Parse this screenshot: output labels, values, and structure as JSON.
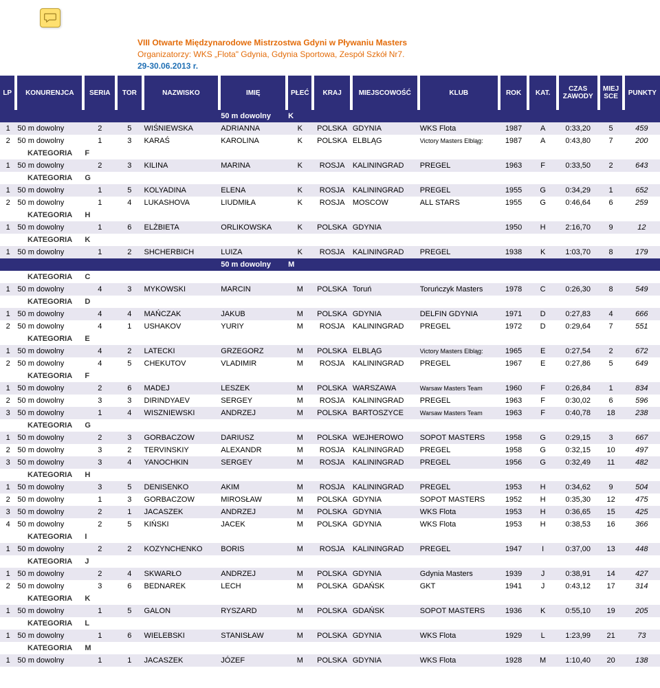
{
  "header": {
    "line1": "VIII Otwarte Międzynarodowe Mistrzostwa Gdyni w Pływaniu Masters",
    "line2": "Organizatorzy: WKS „Flota\" Gdynia, Gdynia Sportowa, Zespół Szkół Nr7.",
    "line3": "29-30.06.2013 r."
  },
  "columns": [
    {
      "key": "lp",
      "label": "LP",
      "cls": "col-lp"
    },
    {
      "key": "kon",
      "label": "KONURENJCA",
      "cls": "col-kon"
    },
    {
      "key": "ser",
      "label": "SERIA",
      "cls": "col-ser"
    },
    {
      "key": "tor",
      "label": "TOR",
      "cls": "col-tor"
    },
    {
      "key": "naz",
      "label": "NAZWISKO",
      "cls": "col-naz"
    },
    {
      "key": "imie",
      "label": "IMIĘ",
      "cls": "col-imie"
    },
    {
      "key": "plec",
      "label": "PŁEĆ",
      "cls": "col-plec"
    },
    {
      "key": "kraj",
      "label": "KRAJ",
      "cls": "col-kraj"
    },
    {
      "key": "mie",
      "label": "MIEJSCOWOŚĆ",
      "cls": "col-mie"
    },
    {
      "key": "klub",
      "label": "KLUB",
      "cls": "col-klub"
    },
    {
      "key": "rok",
      "label": "ROK",
      "cls": "col-rok"
    },
    {
      "key": "kat",
      "label": "KAT.",
      "cls": "col-kat"
    },
    {
      "key": "czas",
      "label": "CZAS ZAWODY",
      "cls": "col-czas"
    },
    {
      "key": "msc",
      "label": "MIEJ SCE",
      "cls": "col-msc"
    },
    {
      "key": "pkt",
      "label": "PUNKTY",
      "cls": "col-pkt"
    }
  ],
  "kategoria_label": "KATEGORIA",
  "rows": [
    {
      "type": "section",
      "label": "50 m dowolny",
      "sex": "K"
    },
    {
      "type": "data",
      "zebra": "odd",
      "lp": "1",
      "kon": "50 m dowolny",
      "ser": "2",
      "tor": "5",
      "naz": "WIŚNIEWSKA",
      "imie": "ADRIANNA",
      "plec": "K",
      "kraj": "POLSKA",
      "mie": "GDYNIA",
      "klub": "WKS Flota",
      "rok": "1987",
      "kat": "A",
      "czas": "0:33,20",
      "msc": "5",
      "pkt": "459"
    },
    {
      "type": "data",
      "zebra": "even",
      "lp": "2",
      "kon": "50 m dowolny",
      "ser": "1",
      "tor": "3",
      "naz": "KARAŚ",
      "imie": "KAROLINA",
      "plec": "K",
      "kraj": "POLSKA",
      "mie": "ELBLĄG",
      "klub": "Victory Masters Elbląg:",
      "klub_small": true,
      "rok": "1987",
      "kat": "A",
      "czas": "0:43,80",
      "msc": "7",
      "pkt": "200"
    },
    {
      "type": "kat",
      "letter": "F"
    },
    {
      "type": "data",
      "zebra": "odd",
      "lp": "1",
      "kon": "50 m dowolny",
      "ser": "2",
      "tor": "3",
      "naz": "KILINA",
      "imie": "MARINA",
      "plec": "K",
      "kraj": "ROSJA",
      "mie": "KALININGRAD",
      "klub": "PREGEL",
      "rok": "1963",
      "kat": "F",
      "czas": "0:33,50",
      "msc": "2",
      "pkt": "643"
    },
    {
      "type": "kat",
      "letter": "G"
    },
    {
      "type": "data",
      "zebra": "odd",
      "lp": "1",
      "kon": "50 m dowolny",
      "ser": "1",
      "tor": "5",
      "naz": "KOLYADINA",
      "imie": "ELENA",
      "plec": "K",
      "kraj": "ROSJA",
      "mie": "KALININGRAD",
      "klub": "PREGEL",
      "rok": "1955",
      "kat": "G",
      "czas": "0:34,29",
      "msc": "1",
      "pkt": "652"
    },
    {
      "type": "data",
      "zebra": "even",
      "lp": "2",
      "kon": "50 m dowolny",
      "ser": "1",
      "tor": "4",
      "naz": "LUKASHOVA",
      "imie": "LIUDMIŁA",
      "plec": "K",
      "kraj": "ROSJA",
      "mie": "MOSCOW",
      "klub": "ALL STARS",
      "rok": "1955",
      "kat": "G",
      "czas": "0:46,64",
      "msc": "6",
      "pkt": "259"
    },
    {
      "type": "kat",
      "letter": "H"
    },
    {
      "type": "data",
      "zebra": "odd",
      "lp": "1",
      "kon": "50 m dowolny",
      "ser": "1",
      "tor": "6",
      "naz": "ELŻBIETA",
      "imie": "ORLIKOWSKA",
      "plec": "K",
      "kraj": "POLSKA",
      "mie": "GDYNIA",
      "klub": "",
      "rok": "1950",
      "kat": "H",
      "czas": "2:16,70",
      "msc": "9",
      "pkt": "12"
    },
    {
      "type": "kat",
      "letter": "K"
    },
    {
      "type": "data",
      "zebra": "odd",
      "lp": "1",
      "kon": "50 m dowolny",
      "ser": "1",
      "tor": "2",
      "naz": "SHCHERBICH",
      "imie": "LUIZA",
      "plec": "K",
      "kraj": "ROSJA",
      "mie": "KALININGRAD",
      "klub": "PREGEL",
      "rok": "1938",
      "kat": "K",
      "czas": "1:03,70",
      "msc": "8",
      "pkt": "179"
    },
    {
      "type": "section",
      "label": "50 m dowolny",
      "sex": "M"
    },
    {
      "type": "kat",
      "letter": "C"
    },
    {
      "type": "data",
      "zebra": "odd",
      "lp": "1",
      "kon": "50 m dowolny",
      "ser": "4",
      "tor": "3",
      "naz": "MYKOWSKI",
      "imie": "MARCIN",
      "plec": "M",
      "kraj": "POLSKA",
      "mie": "Toruń",
      "klub": "Toruńczyk Masters",
      "rok": "1978",
      "kat": "C",
      "czas": "0:26,30",
      "msc": "8",
      "pkt": "549"
    },
    {
      "type": "kat",
      "letter": "D"
    },
    {
      "type": "data",
      "zebra": "odd",
      "lp": "1",
      "kon": "50 m dowolny",
      "ser": "4",
      "tor": "4",
      "naz": "MAŃCZAK",
      "imie": "JAKUB",
      "plec": "M",
      "kraj": "POLSKA",
      "mie": "GDYNIA",
      "klub": "DELFIN GDYNIA",
      "rok": "1971",
      "kat": "D",
      "czas": "0:27,83",
      "msc": "4",
      "pkt": "666"
    },
    {
      "type": "data",
      "zebra": "even",
      "lp": "2",
      "kon": "50 m dowolny",
      "ser": "4",
      "tor": "1",
      "naz": "USHAKOV",
      "imie": "YURIY",
      "plec": "M",
      "kraj": "ROSJA",
      "mie": "KALININGRAD",
      "klub": "PREGEL",
      "rok": "1972",
      "kat": "D",
      "czas": "0:29,64",
      "msc": "7",
      "pkt": "551"
    },
    {
      "type": "kat",
      "letter": "E"
    },
    {
      "type": "data",
      "zebra": "odd",
      "lp": "1",
      "kon": "50 m dowolny",
      "ser": "4",
      "tor": "2",
      "naz": "LATECKI",
      "imie": "GRZEGORZ",
      "plec": "M",
      "kraj": "POLSKA",
      "mie": "ELBLĄG",
      "klub": "Victory Masters Elbląg:",
      "klub_small": true,
      "rok": "1965",
      "kat": "E",
      "czas": "0:27,54",
      "msc": "2",
      "pkt": "672"
    },
    {
      "type": "data",
      "zebra": "even",
      "lp": "2",
      "kon": "50 m dowolny",
      "ser": "4",
      "tor": "5",
      "naz": "CHEKUTOV",
      "imie": "VLADIMIR",
      "plec": "M",
      "kraj": "ROSJA",
      "mie": "KALININGRAD",
      "klub": "PREGEL",
      "rok": "1967",
      "kat": "E",
      "czas": "0:27,86",
      "msc": "5",
      "pkt": "649"
    },
    {
      "type": "kat",
      "letter": "F"
    },
    {
      "type": "data",
      "zebra": "odd",
      "lp": "1",
      "kon": "50 m dowolny",
      "ser": "2",
      "tor": "6",
      "naz": "MADEJ",
      "imie": "LESZEK",
      "plec": "M",
      "kraj": "POLSKA",
      "mie": "WARSZAWA",
      "klub": "Warsaw Masters Team",
      "klub_small": true,
      "rok": "1960",
      "kat": "F",
      "czas": "0:26,84",
      "msc": "1",
      "pkt": "834"
    },
    {
      "type": "data",
      "zebra": "even",
      "lp": "2",
      "kon": "50 m dowolny",
      "ser": "3",
      "tor": "3",
      "naz": "DIRINDYAEV",
      "imie": "SERGEY",
      "plec": "M",
      "kraj": "ROSJA",
      "mie": "KALININGRAD",
      "klub": "PREGEL",
      "rok": "1963",
      "kat": "F",
      "czas": "0:30,02",
      "msc": "6",
      "pkt": "596"
    },
    {
      "type": "data",
      "zebra": "odd",
      "lp": "3",
      "kon": "50 m dowolny",
      "ser": "1",
      "tor": "4",
      "naz": "WISZNIEWSKI",
      "imie": "ANDRZEJ",
      "plec": "M",
      "kraj": "POLSKA",
      "mie": "BARTOSZYCE",
      "klub": "Warsaw Masters Team",
      "klub_small": true,
      "rok": "1963",
      "kat": "F",
      "czas": "0:40,78",
      "msc": "18",
      "pkt": "238"
    },
    {
      "type": "kat",
      "letter": "G"
    },
    {
      "type": "data",
      "zebra": "odd",
      "lp": "1",
      "kon": "50 m dowolny",
      "ser": "2",
      "tor": "3",
      "naz": "GORBACZOW",
      "imie": "DARIUSZ",
      "plec": "M",
      "kraj": "POLSKA",
      "mie": "WEJHEROWO",
      "klub": "SOPOT MASTERS",
      "rok": "1958",
      "kat": "G",
      "czas": "0:29,15",
      "msc": "3",
      "pkt": "667"
    },
    {
      "type": "data",
      "zebra": "even",
      "lp": "2",
      "kon": "50 m dowolny",
      "ser": "3",
      "tor": "2",
      "naz": "TERVINSKIY",
      "imie": "ALEXANDR",
      "plec": "M",
      "kraj": "ROSJA",
      "mie": "KALININGRAD",
      "klub": "PREGEL",
      "rok": "1958",
      "kat": "G",
      "czas": "0:32,15",
      "msc": "10",
      "pkt": "497"
    },
    {
      "type": "data",
      "zebra": "odd",
      "lp": "3",
      "kon": "50 m dowolny",
      "ser": "3",
      "tor": "4",
      "naz": "YANOCHKIN",
      "imie": "SERGEY",
      "plec": "M",
      "kraj": "ROSJA",
      "mie": "KALININGRAD",
      "klub": "PREGEL",
      "rok": "1956",
      "kat": "G",
      "czas": "0:32,49",
      "msc": "11",
      "pkt": "482"
    },
    {
      "type": "kat",
      "letter": "H"
    },
    {
      "type": "data",
      "zebra": "odd",
      "lp": "1",
      "kon": "50 m dowolny",
      "ser": "3",
      "tor": "5",
      "naz": "DENISENKO",
      "imie": "AKIM",
      "plec": "M",
      "kraj": "ROSJA",
      "mie": "KALININGRAD",
      "klub": "PREGEL",
      "rok": "1953",
      "kat": "H",
      "czas": "0:34,62",
      "msc": "9",
      "pkt": "504"
    },
    {
      "type": "data",
      "zebra": "even",
      "lp": "2",
      "kon": "50 m dowolny",
      "ser": "1",
      "tor": "3",
      "naz": "GORBACZOW",
      "imie": "MIROSŁAW",
      "plec": "M",
      "kraj": "POLSKA",
      "mie": "GDYNIA",
      "klub": "SOPOT MASTERS",
      "rok": "1952",
      "kat": "H",
      "czas": "0:35,30",
      "msc": "12",
      "pkt": "475"
    },
    {
      "type": "data",
      "zebra": "odd",
      "lp": "3",
      "kon": "50 m dowolny",
      "ser": "2",
      "tor": "1",
      "naz": "JACASZEK",
      "imie": "ANDRZEJ",
      "plec": "M",
      "kraj": "POLSKA",
      "mie": "GDYNIA",
      "klub": "WKS Flota",
      "rok": "1953",
      "kat": "H",
      "czas": "0:36,65",
      "msc": "15",
      "pkt": "425"
    },
    {
      "type": "data",
      "zebra": "even",
      "lp": "4",
      "kon": "50 m dowolny",
      "ser": "2",
      "tor": "5",
      "naz": "KIŃSKI",
      "imie": "JACEK",
      "plec": "M",
      "kraj": "POLSKA",
      "mie": "GDYNIA",
      "klub": "WKS Flota",
      "rok": "1953",
      "kat": "H",
      "czas": "0:38,53",
      "msc": "16",
      "pkt": "366"
    },
    {
      "type": "kat",
      "letter": "I"
    },
    {
      "type": "data",
      "zebra": "odd",
      "lp": "1",
      "kon": "50 m dowolny",
      "ser": "2",
      "tor": "2",
      "naz": "KOZYNCHENKO",
      "imie": "BORIS",
      "plec": "M",
      "kraj": "ROSJA",
      "mie": "KALININGRAD",
      "klub": "PREGEL",
      "rok": "1947",
      "kat": "I",
      "czas": "0:37,00",
      "msc": "13",
      "pkt": "448"
    },
    {
      "type": "kat",
      "letter": "J"
    },
    {
      "type": "data",
      "zebra": "odd",
      "lp": "1",
      "kon": "50 m dowolny",
      "ser": "2",
      "tor": "4",
      "naz": "SKWARŁO",
      "imie": "ANDRZEJ",
      "plec": "M",
      "kraj": "POLSKA",
      "mie": "GDYNIA",
      "klub": "Gdynia Masters",
      "rok": "1939",
      "kat": "J",
      "czas": "0:38,91",
      "msc": "14",
      "pkt": "427"
    },
    {
      "type": "data",
      "zebra": "even",
      "lp": "2",
      "kon": "50 m dowolny",
      "ser": "3",
      "tor": "6",
      "naz": "BEDNAREK",
      "imie": "LECH",
      "plec": "M",
      "kraj": "POLSKA",
      "mie": "GDAŃSK",
      "klub": "GKT",
      "rok": "1941",
      "kat": "J",
      "czas": "0:43,12",
      "msc": "17",
      "pkt": "314"
    },
    {
      "type": "kat",
      "letter": "K"
    },
    {
      "type": "data",
      "zebra": "odd",
      "lp": "1",
      "kon": "50 m dowolny",
      "ser": "1",
      "tor": "5",
      "naz": "GALON",
      "imie": "RYSZARD",
      "plec": "M",
      "kraj": "POLSKA",
      "mie": "GDAŃSK",
      "klub": "SOPOT MASTERS",
      "rok": "1936",
      "kat": "K",
      "czas": "0:55,10",
      "msc": "19",
      "pkt": "205"
    },
    {
      "type": "kat",
      "letter": "L"
    },
    {
      "type": "data",
      "zebra": "odd",
      "lp": "1",
      "kon": "50 m dowolny",
      "ser": "1",
      "tor": "6",
      "naz": "WIELEBSKI",
      "imie": "STANISŁAW",
      "plec": "M",
      "kraj": "POLSKA",
      "mie": "GDYNIA",
      "klub": "WKS Flota",
      "rok": "1929",
      "kat": "L",
      "czas": "1:23,99",
      "msc": "21",
      "pkt": "73"
    },
    {
      "type": "kat",
      "letter": "M"
    },
    {
      "type": "data",
      "zebra": "odd",
      "lp": "1",
      "kon": "50 m dowolny",
      "ser": "1",
      "tor": "1",
      "naz": "JACASZEK",
      "imie": "JÓZEF",
      "plec": "M",
      "kraj": "POLSKA",
      "mie": "GDYNIA",
      "klub": "WKS Flota",
      "rok": "1928",
      "kat": "M",
      "czas": "1:10,40",
      "msc": "20",
      "pkt": "138"
    }
  ],
  "style": {
    "header_bg": "#2e2e7a",
    "header_fg": "#ffffff",
    "row_odd_bg": "#e8e6f0",
    "row_even_bg": "#ffffff",
    "accent": "#e36c0a",
    "link": "#1f6fb4"
  }
}
